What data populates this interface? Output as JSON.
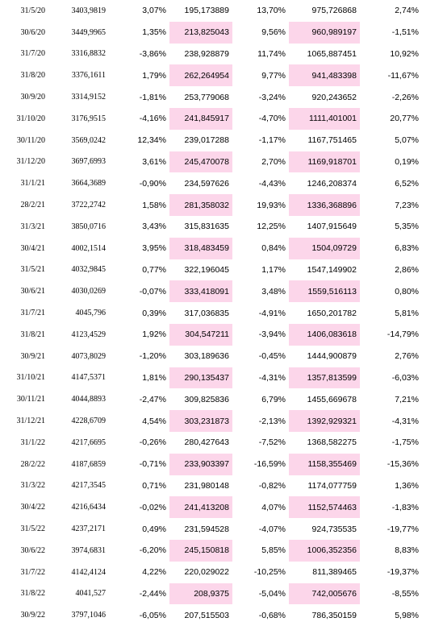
{
  "table": {
    "highlight_color": "#fcd6ea",
    "rows": [
      {
        "date": "31/5/20",
        "index": "3403,9819",
        "idx_change": "3,07%",
        "value_a": "195,173889",
        "a_change": "13,70%",
        "value_b": "975,726868",
        "b_change": "2,74%",
        "highlight": false
      },
      {
        "date": "30/6/20",
        "index": "3449,9965",
        "idx_change": "1,35%",
        "value_a": "213,825043",
        "a_change": "9,56%",
        "value_b": "960,989197",
        "b_change": "-1,51%",
        "highlight": true
      },
      {
        "date": "31/7/20",
        "index": "3316,8832",
        "idx_change": "-3,86%",
        "value_a": "238,928879",
        "a_change": "11,74%",
        "value_b": "1065,887451",
        "b_change": "10,92%",
        "highlight": false
      },
      {
        "date": "31/8/20",
        "index": "3376,1611",
        "idx_change": "1,79%",
        "value_a": "262,264954",
        "a_change": "9,77%",
        "value_b": "941,483398",
        "b_change": "-11,67%",
        "highlight": true
      },
      {
        "date": "30/9/20",
        "index": "3314,9152",
        "idx_change": "-1,81%",
        "value_a": "253,779068",
        "a_change": "-3,24%",
        "value_b": "920,243652",
        "b_change": "-2,26%",
        "highlight": false
      },
      {
        "date": "31/10/20",
        "index": "3176,9515",
        "idx_change": "-4,16%",
        "value_a": "241,845917",
        "a_change": "-4,70%",
        "value_b": "1111,401001",
        "b_change": "20,77%",
        "highlight": true
      },
      {
        "date": "30/11/20",
        "index": "3569,0242",
        "idx_change": "12,34%",
        "value_a": "239,017288",
        "a_change": "-1,17%",
        "value_b": "1167,751465",
        "b_change": "5,07%",
        "highlight": false
      },
      {
        "date": "31/12/20",
        "index": "3697,6993",
        "idx_change": "3,61%",
        "value_a": "245,470078",
        "a_change": "2,70%",
        "value_b": "1169,918701",
        "b_change": "0,19%",
        "highlight": true
      },
      {
        "date": "31/1/21",
        "index": "3664,3689",
        "idx_change": "-0,90%",
        "value_a": "234,597626",
        "a_change": "-4,43%",
        "value_b": "1246,208374",
        "b_change": "6,52%",
        "highlight": false
      },
      {
        "date": "28/2/21",
        "index": "3722,2742",
        "idx_change": "1,58%",
        "value_a": "281,358032",
        "a_change": "19,93%",
        "value_b": "1336,368896",
        "b_change": "7,23%",
        "highlight": true
      },
      {
        "date": "31/3/21",
        "index": "3850,0716",
        "idx_change": "3,43%",
        "value_a": "315,831635",
        "a_change": "12,25%",
        "value_b": "1407,915649",
        "b_change": "5,35%",
        "highlight": false
      },
      {
        "date": "30/4/21",
        "index": "4002,1514",
        "idx_change": "3,95%",
        "value_a": "318,483459",
        "a_change": "0,84%",
        "value_b": "1504,09729",
        "b_change": "6,83%",
        "highlight": true
      },
      {
        "date": "31/5/21",
        "index": "4032,9845",
        "idx_change": "0,77%",
        "value_a": "322,196045",
        "a_change": "1,17%",
        "value_b": "1547,149902",
        "b_change": "2,86%",
        "highlight": false
      },
      {
        "date": "30/6/21",
        "index": "4030,0269",
        "idx_change": "-0,07%",
        "value_a": "333,418091",
        "a_change": "3,48%",
        "value_b": "1559,516113",
        "b_change": "0,80%",
        "highlight": true
      },
      {
        "date": "31/7/21",
        "index": "4045,796",
        "idx_change": "0,39%",
        "value_a": "317,036835",
        "a_change": "-4,91%",
        "value_b": "1650,201782",
        "b_change": "5,81%",
        "highlight": false
      },
      {
        "date": "31/8/21",
        "index": "4123,4529",
        "idx_change": "1,92%",
        "value_a": "304,547211",
        "a_change": "-3,94%",
        "value_b": "1406,083618",
        "b_change": "-14,79%",
        "highlight": true
      },
      {
        "date": "30/9/21",
        "index": "4073,8029",
        "idx_change": "-1,20%",
        "value_a": "303,189636",
        "a_change": "-0,45%",
        "value_b": "1444,900879",
        "b_change": "2,76%",
        "highlight": false
      },
      {
        "date": "31/10/21",
        "index": "4147,5371",
        "idx_change": "1,81%",
        "value_a": "290,135437",
        "a_change": "-4,31%",
        "value_b": "1357,813599",
        "b_change": "-6,03%",
        "highlight": true
      },
      {
        "date": "30/11/21",
        "index": "4044,8893",
        "idx_change": "-2,47%",
        "value_a": "309,825836",
        "a_change": "6,79%",
        "value_b": "1455,669678",
        "b_change": "7,21%",
        "highlight": false
      },
      {
        "date": "31/12/21",
        "index": "4228,6709",
        "idx_change": "4,54%",
        "value_a": "303,231873",
        "a_change": "-2,13%",
        "value_b": "1392,929321",
        "b_change": "-4,31%",
        "highlight": true
      },
      {
        "date": "31/1/22",
        "index": "4217,6695",
        "idx_change": "-0,26%",
        "value_a": "280,427643",
        "a_change": "-7,52%",
        "value_b": "1368,582275",
        "b_change": "-1,75%",
        "highlight": false
      },
      {
        "date": "28/2/22",
        "index": "4187,6859",
        "idx_change": "-0,71%",
        "value_a": "233,903397",
        "a_change": "-16,59%",
        "value_b": "1158,355469",
        "b_change": "-15,36%",
        "highlight": true
      },
      {
        "date": "31/3/22",
        "index": "4217,3545",
        "idx_change": "0,71%",
        "value_a": "231,980148",
        "a_change": "-0,82%",
        "value_b": "1174,077759",
        "b_change": "1,36%",
        "highlight": false
      },
      {
        "date": "30/4/22",
        "index": "4216,6434",
        "idx_change": "-0,02%",
        "value_a": "241,413208",
        "a_change": "4,07%",
        "value_b": "1152,574463",
        "b_change": "-1,83%",
        "highlight": true
      },
      {
        "date": "31/5/22",
        "index": "4237,2171",
        "idx_change": "0,49%",
        "value_a": "231,594528",
        "a_change": "-4,07%",
        "value_b": "924,735535",
        "b_change": "-19,77%",
        "highlight": false
      },
      {
        "date": "30/6/22",
        "index": "3974,6831",
        "idx_change": "-6,20%",
        "value_a": "245,150818",
        "a_change": "5,85%",
        "value_b": "1006,352356",
        "b_change": "8,83%",
        "highlight": true
      },
      {
        "date": "31/7/22",
        "index": "4142,4124",
        "idx_change": "4,22%",
        "value_a": "220,029022",
        "a_change": "-10,25%",
        "value_b": "811,389465",
        "b_change": "-19,37%",
        "highlight": false
      },
      {
        "date": "31/8/22",
        "index": "4041,527",
        "idx_change": "-2,44%",
        "value_a": "208,9375",
        "a_change": "-5,04%",
        "value_b": "742,005676",
        "b_change": "-8,55%",
        "highlight": true
      },
      {
        "date": "30/9/22",
        "index": "3797,1046",
        "idx_change": "-6,05%",
        "value_a": "207,515503",
        "a_change": "-0,68%",
        "value_b": "786,350159",
        "b_change": "5,98%",
        "highlight": false
      }
    ]
  }
}
